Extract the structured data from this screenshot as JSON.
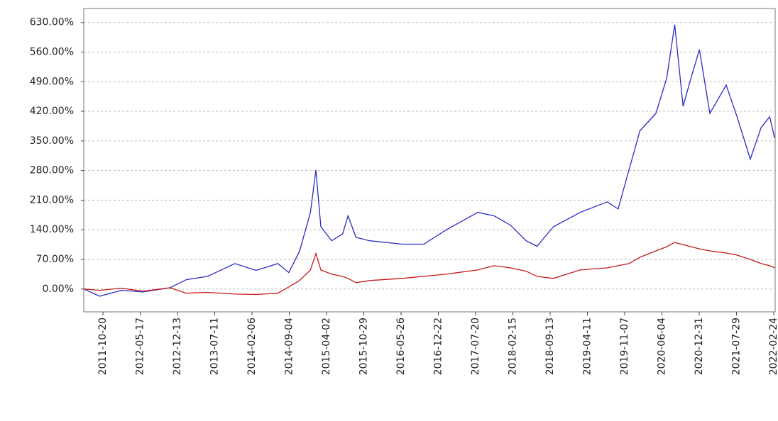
{
  "chart_data": {
    "type": "line",
    "x": [
      "2011-07-04",
      "2011-10-01",
      "2012-02-01",
      "2012-06-01",
      "2012-11-01",
      "2013-02-01",
      "2013-06-01",
      "2013-11-01",
      "2014-03-01",
      "2014-07-01",
      "2014-09-01",
      "2014-11-01",
      "2015-01-01",
      "2015-02-01",
      "2015-03-01",
      "2015-05-01",
      "2015-07-01",
      "2015-08-01",
      "2015-09-15",
      "2015-12-01",
      "2016-06-01",
      "2016-10-01",
      "2017-02-01",
      "2017-08-01",
      "2017-11-01",
      "2018-02-01",
      "2018-05-01",
      "2018-07-01",
      "2018-10-01",
      "2019-03-01",
      "2019-08-01",
      "2019-10-01",
      "2019-12-01",
      "2020-02-01",
      "2020-05-01",
      "2020-07-01",
      "2020-08-15",
      "2020-10-01",
      "2020-11-15",
      "2021-01-01",
      "2021-03-01",
      "2021-06-01",
      "2021-08-01",
      "2021-10-15",
      "2021-12-15",
      "2022-02-01",
      "2022-03-01"
    ],
    "series": [
      {
        "color": "#2a2ac8",
        "values": [
          0,
          -17,
          -3,
          -7,
          3,
          22,
          30,
          60,
          44,
          60,
          39,
          89,
          181,
          281,
          147,
          114,
          130,
          173,
          122,
          114,
          106,
          106,
          139,
          181,
          173,
          151,
          114,
          101,
          147,
          181,
          206,
          189,
          281,
          374,
          415,
          499,
          625,
          432,
          499,
          566,
          415,
          482,
          407,
          307,
          382,
          407,
          357
        ]
      },
      {
        "color": "#c41a1a",
        "values": [
          0,
          -3,
          2,
          -5,
          3,
          -10,
          -8,
          -12,
          -13,
          -10,
          5,
          20,
          45,
          84,
          45,
          35,
          30,
          25,
          15,
          20,
          25,
          30,
          35,
          45,
          55,
          50,
          42,
          30,
          25,
          45,
          50,
          55,
          60,
          75,
          90,
          100,
          110,
          105,
          100,
          95,
          90,
          85,
          80,
          70,
          60,
          55,
          50
        ]
      }
    ],
    "xlim": [
      "2011-07-04",
      "2022-03-04"
    ],
    "xticks": [
      "2011-10-20",
      "2012-05-17",
      "2012-12-13",
      "2013-07-11",
      "2014-02-06",
      "2014-09-04",
      "2015-04-02",
      "2015-10-29",
      "2016-05-26",
      "2016-12-22",
      "2017-07-20",
      "2018-02-15",
      "2018-09-13",
      "2019-04-11",
      "2019-11-07",
      "2020-06-04",
      "2020-12-31",
      "2021-07-29",
      "2022-02-24"
    ],
    "ylim": [
      -54,
      663
    ],
    "yticks": [
      {
        "value": 0,
        "label": "0.00%"
      },
      {
        "value": 70,
        "label": "70.00%"
      },
      {
        "value": 140,
        "label": "140.00%"
      },
      {
        "value": 210,
        "label": "210.00%"
      },
      {
        "value": 280,
        "label": "280.00%"
      },
      {
        "value": 350,
        "label": "350.00%"
      },
      {
        "value": 420,
        "label": "420.00%"
      },
      {
        "value": 490,
        "label": "490.00%"
      },
      {
        "value": 560,
        "label": "560.00%"
      },
      {
        "value": 630,
        "label": "630.00%"
      }
    ],
    "grid": true
  }
}
